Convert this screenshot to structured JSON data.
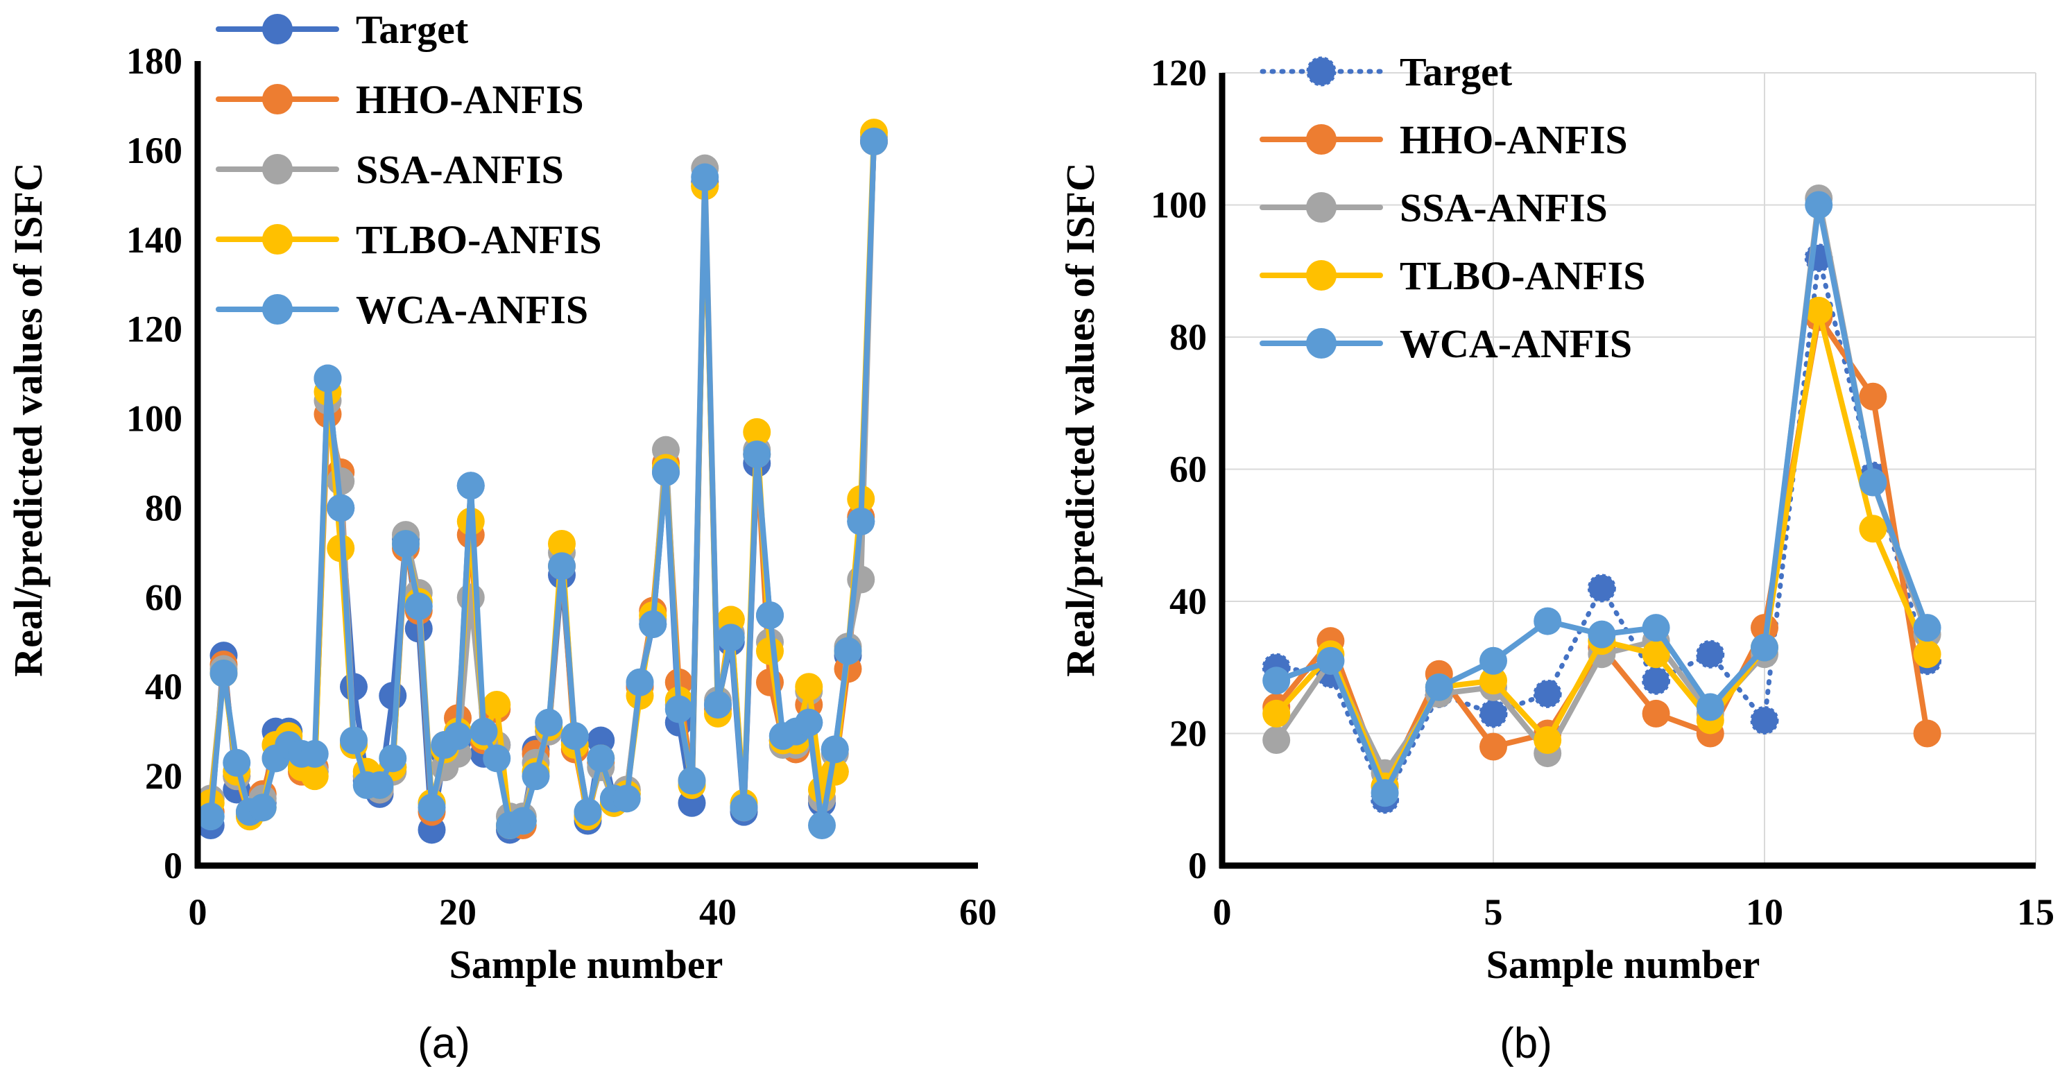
{
  "colors": {
    "Target": "#4472C4",
    "HHO-ANFIS": "#ED7D31",
    "SSA-ANFIS": "#A5A5A5",
    "TLBO-ANFIS": "#FFC000",
    "WCA-ANFIS": "#5B9BD5",
    "axis": "#000000",
    "grid": "#D9D9D9"
  },
  "chart_data": [
    {
      "type": "line",
      "caption": "(a)",
      "xlabel": "Sample number",
      "ylabel": "Real/predicted values of ISFC",
      "xlim": [
        0,
        60
      ],
      "ylim": [
        0,
        180
      ],
      "xticks": [
        "0",
        "20",
        "40",
        "60"
      ],
      "yticks": [
        "0",
        "20",
        "40",
        "60",
        "80",
        "100",
        "120",
        "140",
        "160",
        "180"
      ],
      "grid": false,
      "legend": "top-left",
      "x": [
        1,
        2,
        3,
        4,
        5,
        6,
        7,
        8,
        9,
        10,
        11,
        12,
        13,
        14,
        15,
        16,
        17,
        18,
        19,
        20,
        21,
        22,
        23,
        24,
        25,
        26,
        27,
        28,
        29,
        30,
        31,
        32,
        33,
        34,
        35,
        36,
        37,
        38,
        39,
        40,
        41,
        42,
        43,
        44,
        45,
        46,
        47,
        48,
        49,
        50,
        51,
        52
      ],
      "series": [
        {
          "name": "Target",
          "style": "solid",
          "values": [
            9,
            47,
            17,
            12,
            14,
            30,
            30,
            22,
            21,
            109,
            80,
            40,
            19,
            16,
            38,
            73,
            53,
            8,
            25,
            28,
            85,
            25,
            27,
            8,
            10,
            26,
            30,
            65,
            28,
            10,
            28,
            15,
            16,
            40,
            54,
            88,
            32,
            14,
            153,
            36,
            50,
            12,
            90,
            56,
            28,
            27,
            32,
            14,
            26,
            47,
            77,
            162
          ]
        },
        {
          "name": "HHO-ANFIS",
          "style": "solid",
          "values": [
            12,
            45,
            20,
            11,
            16,
            27,
            26,
            21,
            22,
            101,
            88,
            27,
            20,
            17,
            22,
            71,
            57,
            12,
            27,
            33,
            74,
            28,
            35,
            9,
            9,
            25,
            30,
            67,
            26,
            11,
            23,
            14,
            17,
            40,
            57,
            90,
            41,
            19,
            152,
            35,
            55,
            13,
            92,
            41,
            28,
            26,
            36,
            15,
            21,
            44,
            78,
            162
          ]
        },
        {
          "name": "SSA-ANFIS",
          "style": "solid",
          "values": [
            15,
            44,
            20,
            12,
            15,
            24,
            28,
            23,
            21,
            104,
            86,
            28,
            20,
            17,
            21,
            74,
            61,
            14,
            22,
            25,
            60,
            30,
            27,
            11,
            11,
            23,
            30,
            70,
            29,
            12,
            22,
            14,
            17,
            41,
            55,
            93,
            36,
            18,
            156,
            37,
            52,
            13,
            93,
            50,
            27,
            27,
            39,
            15,
            25,
            49,
            64,
            163
          ]
        },
        {
          "name": "TLBO-ANFIS",
          "style": "solid",
          "values": [
            14,
            43,
            21,
            11,
            13,
            27,
            29,
            22,
            20,
            106,
            71,
            27,
            21,
            18,
            22,
            72,
            59,
            14,
            26,
            30,
            77,
            29,
            36,
            9,
            10,
            21,
            31,
            72,
            27,
            11,
            24,
            14,
            16,
            38,
            56,
            89,
            37,
            18,
            152,
            34,
            55,
            14,
            97,
            48,
            28,
            28,
            40,
            17,
            21,
            48,
            82,
            164
          ]
        },
        {
          "name": "WCA-ANFIS",
          "style": "solid",
          "values": [
            11,
            43,
            23,
            12,
            13,
            24,
            27,
            25,
            25,
            109,
            80,
            28,
            18,
            18,
            24,
            72,
            58,
            13,
            27,
            29,
            85,
            30,
            24,
            9,
            10,
            20,
            32,
            67,
            29,
            12,
            24,
            15,
            15,
            41,
            54,
            88,
            35,
            19,
            154,
            36,
            51,
            13,
            92,
            56,
            29,
            30,
            32,
            9,
            26,
            48,
            77,
            162
          ]
        }
      ]
    },
    {
      "type": "line",
      "caption": "(b)",
      "xlabel": "Sample number",
      "ylabel": "Real/predicted values of ISFC",
      "xlim": [
        0,
        15
      ],
      "ylim": [
        0,
        120
      ],
      "xticks": [
        "0",
        "5",
        "10",
        "15"
      ],
      "yticks": [
        "0",
        "20",
        "40",
        "60",
        "80",
        "100",
        "120"
      ],
      "grid": true,
      "legend": "top-left",
      "x": [
        1,
        2,
        3,
        4,
        5,
        6,
        7,
        8,
        9,
        10,
        11,
        12,
        13
      ],
      "series": [
        {
          "name": "Target",
          "style": "dotted",
          "values": [
            30,
            29,
            10,
            26,
            23,
            26,
            42,
            28,
            32,
            22,
            92,
            59,
            31
          ]
        },
        {
          "name": "HHO-ANFIS",
          "style": "solid",
          "values": [
            24,
            34,
            12,
            29,
            18,
            20,
            33,
            23,
            20,
            36,
            83,
            71,
            20
          ]
        },
        {
          "name": "SSA-ANFIS",
          "style": "solid",
          "values": [
            19,
            31,
            14,
            26,
            27,
            17,
            32,
            34,
            23,
            32,
            101,
            58,
            35
          ]
        },
        {
          "name": "TLBO-ANFIS",
          "style": "solid",
          "values": [
            23,
            32,
            12,
            27,
            28,
            19,
            34,
            32,
            22,
            33,
            84,
            51,
            32
          ]
        },
        {
          "name": "WCA-ANFIS",
          "style": "solid",
          "values": [
            28,
            31,
            11,
            27,
            31,
            37,
            35,
            36,
            24,
            33,
            100,
            58,
            36
          ]
        }
      ]
    }
  ]
}
